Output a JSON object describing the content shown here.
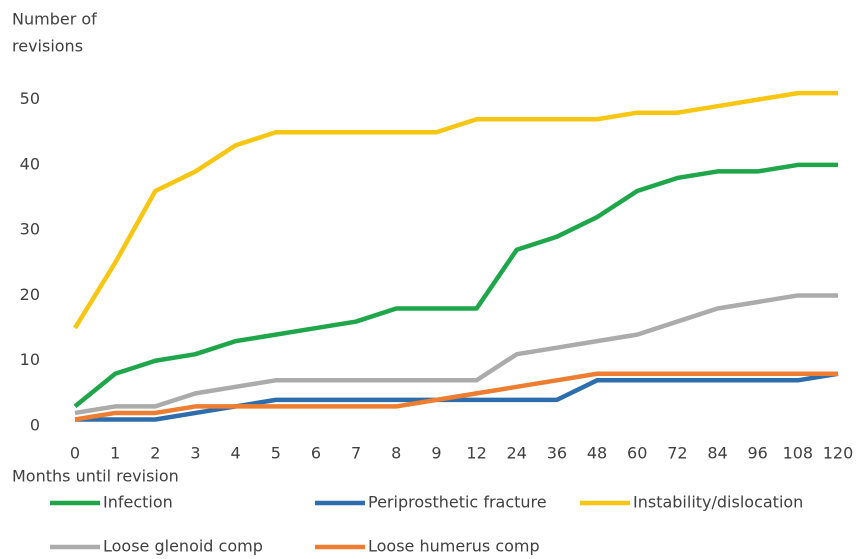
{
  "chart_data": {
    "type": "line",
    "y_label": [
      "Number of",
      "revisions"
    ],
    "x_label": "Months until revision",
    "categories": [
      "0",
      "1",
      "2",
      "3",
      "4",
      "5",
      "6",
      "7",
      "8",
      "9",
      "12",
      "24",
      "36",
      "48",
      "60",
      "72",
      "84",
      "96",
      "108",
      "120"
    ],
    "series": [
      {
        "name": "Infection",
        "color": "#1fa64a",
        "values": [
          3,
          8,
          10,
          11,
          13,
          14,
          15,
          16,
          18,
          18,
          18,
          27,
          29,
          32,
          36,
          38,
          39,
          39,
          40,
          40
        ]
      },
      {
        "name": "Periprosthetic fracture",
        "color": "#2e6dab",
        "values": [
          1,
          1,
          1,
          2,
          3,
          4,
          4,
          4,
          4,
          4,
          4,
          4,
          4,
          7,
          7,
          7,
          7,
          7,
          7,
          8
        ]
      },
      {
        "name": "Instability/dislocation",
        "color": "#f7c613",
        "values": [
          15,
          25,
          36,
          39,
          43,
          45,
          45,
          45,
          45,
          45,
          47,
          47,
          47,
          47,
          48,
          48,
          49,
          50,
          51,
          51
        ]
      },
      {
        "name": "Loose glenoid comp",
        "color": "#ababab",
        "values": [
          2,
          3,
          3,
          5,
          6,
          7,
          7,
          7,
          7,
          7,
          7,
          11,
          12,
          13,
          14,
          16,
          18,
          19,
          20,
          20
        ]
      },
      {
        "name": "Loose humerus comp",
        "color": "#ed7d31",
        "values": [
          1,
          2,
          2,
          3,
          3,
          3,
          3,
          3,
          3,
          4,
          5,
          6,
          7,
          8,
          8,
          8,
          8,
          8,
          8,
          8
        ]
      }
    ],
    "ylim": [
      0,
      55
    ],
    "yticks": [
      0,
      10,
      20,
      30,
      40,
      50
    ],
    "grid": false
  }
}
